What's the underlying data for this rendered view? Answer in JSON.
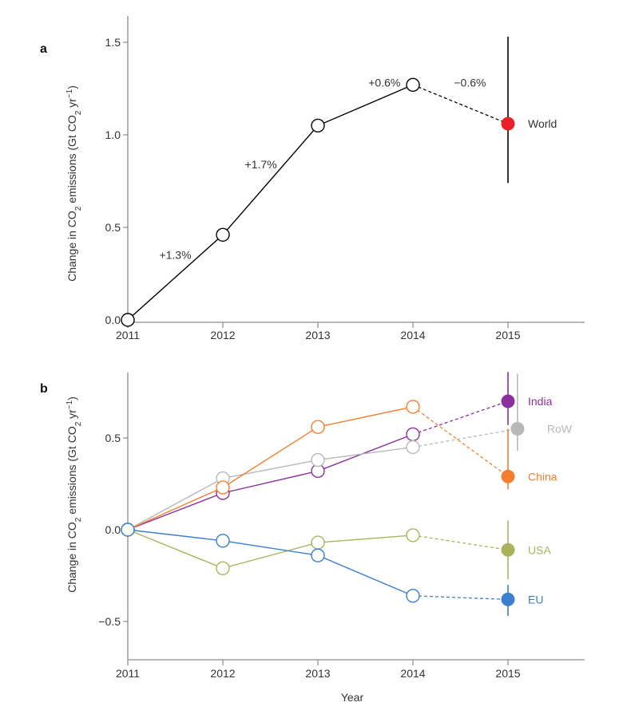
{
  "chart_data": [
    {
      "panel": "a",
      "type": "line",
      "panel_label": "a",
      "xlabel": "",
      "ylabel": "Change in CO2 emissions (Gt CO2 yr-1)",
      "ylabel_parts": {
        "pre": "Change in CO",
        "sub1": "2",
        "mid": " emissions (Gt CO",
        "sub2": "2",
        "mid2": " yr",
        "sup": "−1",
        "post": ")"
      },
      "x": [
        2011,
        2012,
        2013,
        2014,
        2015
      ],
      "xlim": [
        2011,
        2015.8
      ],
      "ylim": [
        0,
        1.6
      ],
      "yticks": [
        0.0,
        0.5,
        1.0,
        1.5
      ],
      "ytick_labels": [
        "0.0",
        "0.5",
        "1.0",
        "1.5"
      ],
      "xtick_labels": [
        "2011",
        "2012",
        "2013",
        "2014",
        "2015"
      ],
      "grid": false,
      "series": [
        {
          "name": "World",
          "color": "#000000",
          "projection_color": "#e8212a",
          "observed": {
            "x": [
              2011,
              2012,
              2013,
              2014
            ],
            "y": [
              0.0,
              0.46,
              1.05,
              1.27
            ]
          },
          "projection": {
            "x": 2015,
            "y": 1.06,
            "error": [
              0.74,
              1.53
            ]
          }
        }
      ],
      "annotations": [
        {
          "text": "+1.3%",
          "x": 2011.5,
          "y": 0.33
        },
        {
          "text": "+1.7%",
          "x": 2012.4,
          "y": 0.82
        },
        {
          "text": "+0.6%",
          "x": 2013.7,
          "y": 1.26
        },
        {
          "text": "−0.6%",
          "x": 2014.6,
          "y": 1.26
        }
      ]
    },
    {
      "panel": "b",
      "type": "line",
      "panel_label": "b",
      "xlabel": "Year",
      "ylabel": "Change in CO2 emissions (Gt CO2 yr-1)",
      "ylabel_parts": {
        "pre": "Change in CO",
        "sub1": "2",
        "mid": " emissions (Gt CO",
        "sub2": "2",
        "mid2": " yr",
        "sup": "−1",
        "post": ")"
      },
      "x": [
        2011,
        2012,
        2013,
        2014,
        2015
      ],
      "xlim": [
        2011,
        2015.8
      ],
      "ylim": [
        -0.7,
        0.86
      ],
      "yticks": [
        -0.5,
        0.0,
        0.5
      ],
      "ytick_labels": [
        "−0.5",
        "0.0",
        "0.5"
      ],
      "xtick_labels": [
        "2011",
        "2012",
        "2013",
        "2014",
        "2015"
      ],
      "grid": false,
      "series": [
        {
          "name": "India",
          "color": "#8b2f9e",
          "observed": {
            "x": [
              2011,
              2012,
              2013,
              2014
            ],
            "y": [
              0.0,
              0.2,
              0.32,
              0.52
            ]
          },
          "projection": {
            "x": 2015,
            "y": 0.7,
            "error": [
              0.57,
              0.86
            ]
          }
        },
        {
          "name": "RoW",
          "color": "#b8b8b8",
          "observed": {
            "x": [
              2011,
              2012,
              2013,
              2014
            ],
            "y": [
              0.0,
              0.28,
              0.38,
              0.45
            ]
          },
          "projection": {
            "x": 2015.1,
            "y": 0.55,
            "error": [
              0.43,
              0.85
            ]
          }
        },
        {
          "name": "China",
          "color": "#f47f30",
          "observed": {
            "x": [
              2011,
              2012,
              2013,
              2014
            ],
            "y": [
              0.0,
              0.23,
              0.56,
              0.67
            ]
          },
          "projection": {
            "x": 2015,
            "y": 0.29,
            "error": [
              0.22,
              0.55
            ]
          }
        },
        {
          "name": "USA",
          "color": "#a9b45a",
          "observed": {
            "x": [
              2011,
              2012,
              2013,
              2014
            ],
            "y": [
              0.0,
              -0.21,
              -0.07,
              -0.03
            ]
          },
          "projection": {
            "x": 2015,
            "y": -0.11,
            "error": [
              -0.27,
              0.05
            ]
          }
        },
        {
          "name": "EU",
          "color": "#3a7fd0",
          "observed": {
            "x": [
              2011,
              2012,
              2013,
              2014
            ],
            "y": [
              0.0,
              -0.06,
              -0.14,
              -0.36
            ]
          },
          "projection": {
            "x": 2015,
            "y": -0.38,
            "error": [
              -0.47,
              -0.3
            ]
          }
        }
      ]
    }
  ]
}
